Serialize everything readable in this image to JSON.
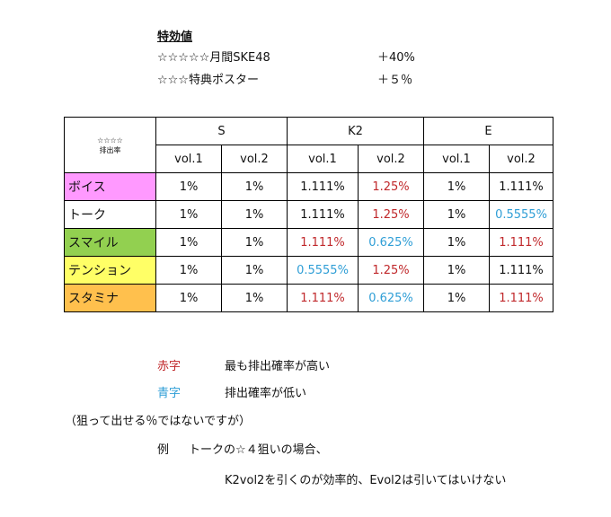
{
  "bonus": {
    "title": "特効値",
    "items": [
      {
        "label": "☆☆☆☆☆月間SKE48",
        "value": "＋40%"
      },
      {
        "label": "☆☆☆特典ポスター",
        "value": "＋５％"
      }
    ]
  },
  "table": {
    "corner_line1": "☆☆☆☆",
    "corner_line2": "排出率",
    "groups": [
      "S",
      "K2",
      "E"
    ],
    "subheaders": [
      "vol.1",
      "vol.2",
      "vol.1",
      "vol.2",
      "vol.1",
      "vol.2"
    ],
    "rows": [
      {
        "name": "ボイス",
        "color": "#ff99ff",
        "cells": [
          {
            "v": "1%",
            "c": ""
          },
          {
            "v": "1%",
            "c": ""
          },
          {
            "v": "1.111%",
            "c": ""
          },
          {
            "v": "1.25%",
            "c": "red"
          },
          {
            "v": "1%",
            "c": ""
          },
          {
            "v": "1.111%",
            "c": ""
          }
        ]
      },
      {
        "name": "トーク",
        "color": "#ffffff",
        "cells": [
          {
            "v": "1%",
            "c": ""
          },
          {
            "v": "1%",
            "c": ""
          },
          {
            "v": "1.111%",
            "c": ""
          },
          {
            "v": "1.25%",
            "c": "red"
          },
          {
            "v": "1%",
            "c": ""
          },
          {
            "v": "0.5555%",
            "c": "blue"
          }
        ]
      },
      {
        "name": "スマイル",
        "color": "#92d050",
        "cells": [
          {
            "v": "1%",
            "c": ""
          },
          {
            "v": "1%",
            "c": ""
          },
          {
            "v": "1.111%",
            "c": "red"
          },
          {
            "v": "0.625%",
            "c": "blue"
          },
          {
            "v": "1%",
            "c": ""
          },
          {
            "v": "1.111%",
            "c": "red"
          }
        ]
      },
      {
        "name": "テンション",
        "color": "#ffff66",
        "cells": [
          {
            "v": "1%",
            "c": ""
          },
          {
            "v": "1%",
            "c": ""
          },
          {
            "v": "0.5555%",
            "c": "blue"
          },
          {
            "v": "1.25%",
            "c": "red"
          },
          {
            "v": "1%",
            "c": ""
          },
          {
            "v": "1.111%",
            "c": ""
          }
        ]
      },
      {
        "name": "スタミナ",
        "color": "#ffc04d",
        "cells": [
          {
            "v": "1%",
            "c": ""
          },
          {
            "v": "1%",
            "c": ""
          },
          {
            "v": "1.111%",
            "c": "red"
          },
          {
            "v": "0.625%",
            "c": "blue"
          },
          {
            "v": "1%",
            "c": ""
          },
          {
            "v": "1.111%",
            "c": "red"
          }
        ]
      }
    ]
  },
  "legend": {
    "red_label": "赤字",
    "red_text": "最も排出確率が高い",
    "blue_label": "青字",
    "blue_text": "排出確率が低い"
  },
  "notes": {
    "note1": "（狙って出せる％ではないですが）",
    "example_label": "例",
    "example_text": "トークの☆４狙いの場合、",
    "example_text2": "K2vol2を引くのが効率的、Evol2は引いてはいけない"
  },
  "colors": {
    "red": "#c0282b",
    "blue": "#2f9ed6"
  }
}
